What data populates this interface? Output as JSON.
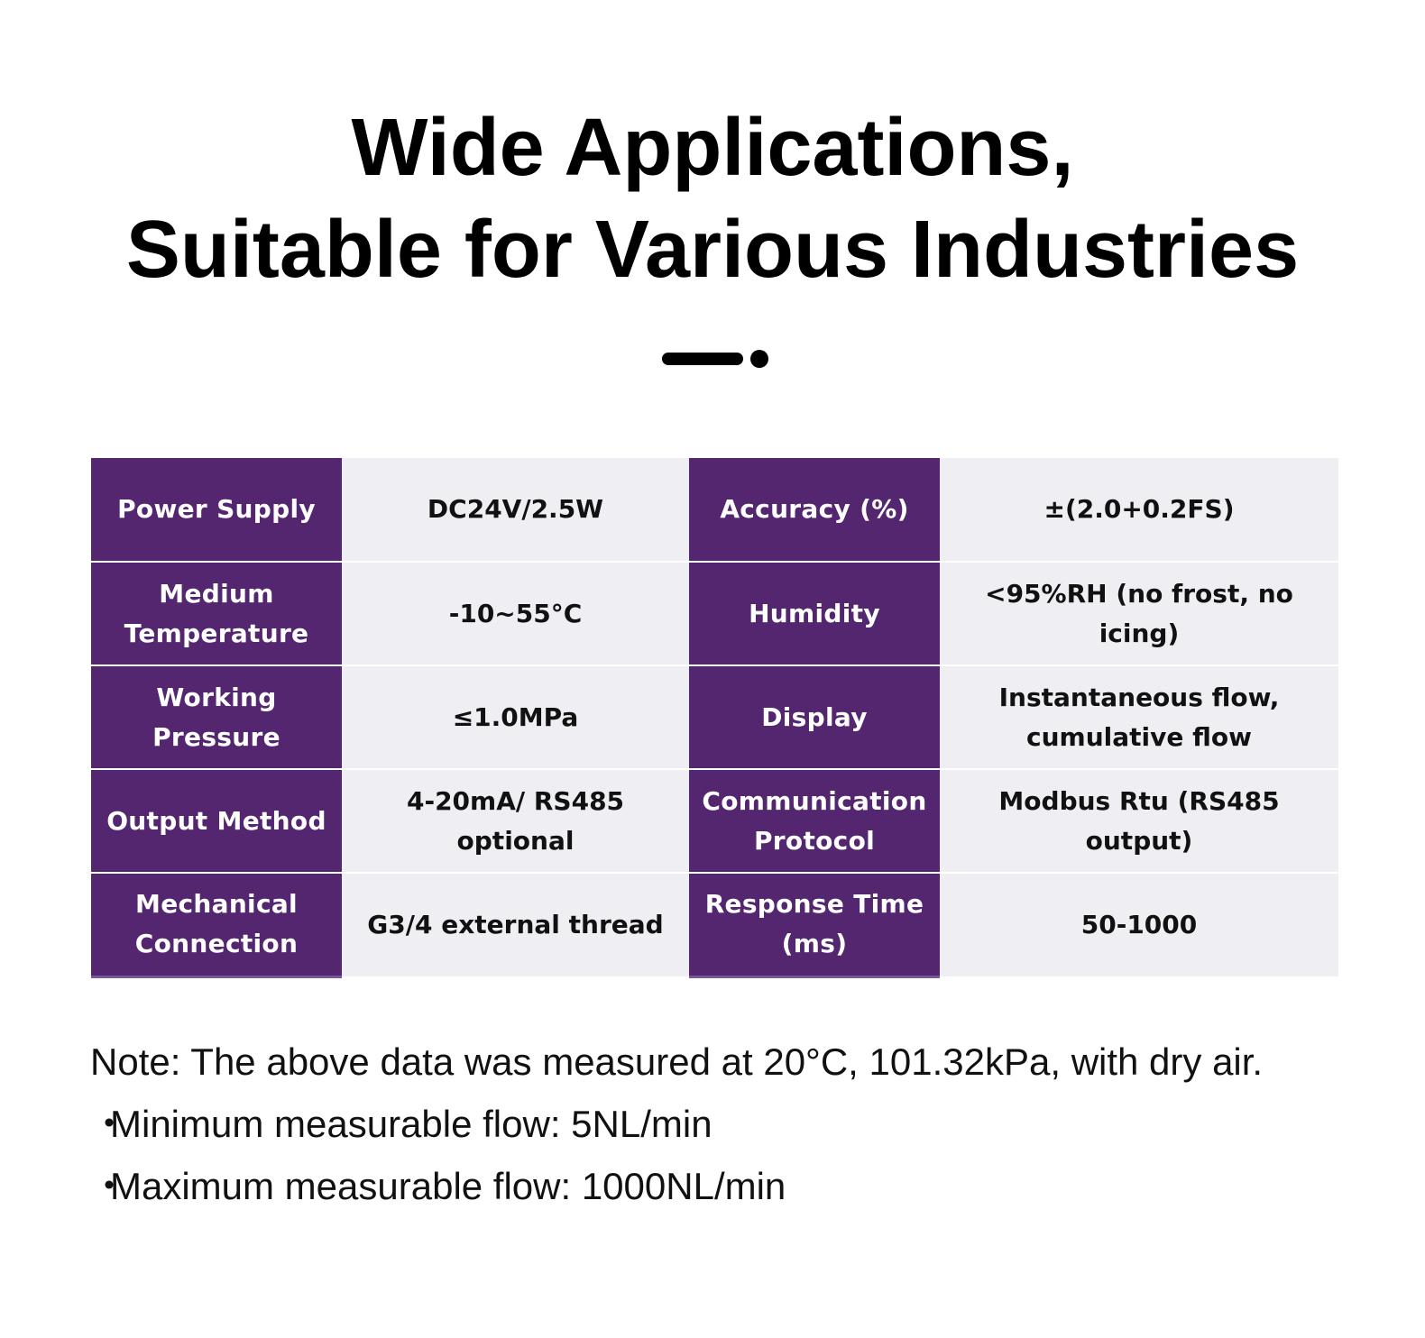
{
  "header": {
    "title_line1": "Wide Applications,",
    "title_line2": "Suitable for Various Industries"
  },
  "specs": {
    "rows": [
      {
        "label1": "Power Supply",
        "value1": "DC24V/2.5W",
        "label2": "Accuracy (%)",
        "value2": "±(2.0+0.2FS)"
      },
      {
        "label1": "Medium Temperature",
        "value1": "-10~55°C",
        "label2": "Humidity",
        "value2": "<95%RH (no frost, no icing)"
      },
      {
        "label1": "Working Pressure",
        "value1": "≤1.0MPa",
        "label2": "Display",
        "value2": "Instantaneous flow, cumulative flow"
      },
      {
        "label1": "Output Method",
        "value1": "4-20mA/ RS485 optional",
        "label2": "Communication Protocol",
        "value2": "Modbus Rtu (RS485 output)"
      },
      {
        "label1": "Mechanical Connection",
        "value1": "G3/4 external thread",
        "label2": "Response Time (ms)",
        "value2": "50-1000"
      }
    ]
  },
  "notes": {
    "note": "Note: The above data was measured at 20°C, 101.32kPa, with dry air.",
    "bullet_symbol": "・",
    "min_flow": "Minimum measurable flow: 5NL/min",
    "max_flow": "Maximum measurable flow: 1000NL/min"
  },
  "colors": {
    "label_bg": "#53266f",
    "value_bg": "#efeef3",
    "text": "#000000"
  }
}
